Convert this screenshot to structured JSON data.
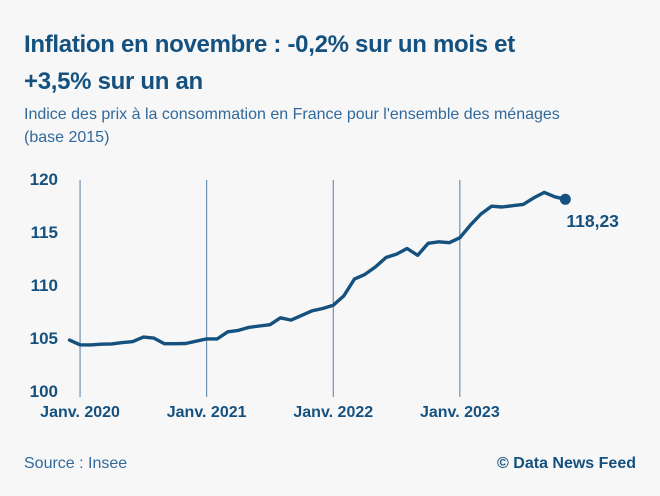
{
  "header": {
    "title_lines": [
      "Inflation en novembre : -0,2% sur un mois et",
      "+3,5% sur un an"
    ],
    "subtitle_lines": [
      "Indice des prix à la consommation en France pour l'ensemble des ménages",
      "(base 2015)"
    ]
  },
  "footer": {
    "source": "Source : Insee",
    "credit": "© Data News Feed"
  },
  "colors": {
    "background": "#f7f7f7",
    "dark_blue": "#15517f",
    "medium_blue": "#31699c",
    "gridline": "#567fa5"
  },
  "chart_data": {
    "type": "line",
    "title": "Inflation en novembre : -0,2% sur un mois et +3,5% sur un an",
    "subtitle": "Indice des prix à la consommation en France pour l'ensemble des ménages (base 2015)",
    "x": [
      "2019-12",
      "2020-01",
      "2020-02",
      "2020-03",
      "2020-04",
      "2020-05",
      "2020-06",
      "2020-07",
      "2020-08",
      "2020-09",
      "2020-10",
      "2020-11",
      "2020-12",
      "2021-01",
      "2021-02",
      "2021-03",
      "2021-04",
      "2021-05",
      "2021-06",
      "2021-07",
      "2021-08",
      "2021-09",
      "2021-10",
      "2021-11",
      "2021-12",
      "2022-01",
      "2022-02",
      "2022-03",
      "2022-04",
      "2022-05",
      "2022-06",
      "2022-07",
      "2022-08",
      "2022-09",
      "2022-10",
      "2022-11",
      "2022-12",
      "2023-01",
      "2023-02",
      "2023-03",
      "2023-04",
      "2023-05",
      "2023-06",
      "2023-07",
      "2023-08",
      "2023-09",
      "2023-10",
      "2023-11"
    ],
    "values": [
      104.98,
      104.54,
      104.53,
      104.59,
      104.62,
      104.74,
      104.84,
      105.26,
      105.17,
      104.64,
      104.64,
      104.66,
      104.88,
      105.09,
      105.09,
      105.76,
      105.89,
      106.17,
      106.31,
      106.43,
      107.08,
      106.86,
      107.3,
      107.74,
      107.95,
      108.26,
      109.14,
      110.72,
      111.16,
      111.87,
      112.75,
      113.07,
      113.6,
      112.96,
      114.09,
      114.23,
      114.15,
      114.62,
      115.8,
      116.85,
      117.58,
      117.51,
      117.63,
      117.75,
      118.36,
      118.88,
      118.47,
      118.23
    ],
    "end_label": "118,23",
    "last_value": 118.23,
    "yticks": [
      "120",
      "115",
      "110",
      "105",
      "100"
    ],
    "xticks": [
      "Janv. 2020",
      "Janv. 2021",
      "Janv. 2022",
      "Janv. 2023"
    ],
    "xtick_month_indices": [
      1,
      13,
      25,
      37
    ],
    "ylim": [
      100,
      120
    ],
    "grid": "vertical-only",
    "legend": "none",
    "line_color": "#15517f",
    "grid_color": "#567fa5"
  }
}
